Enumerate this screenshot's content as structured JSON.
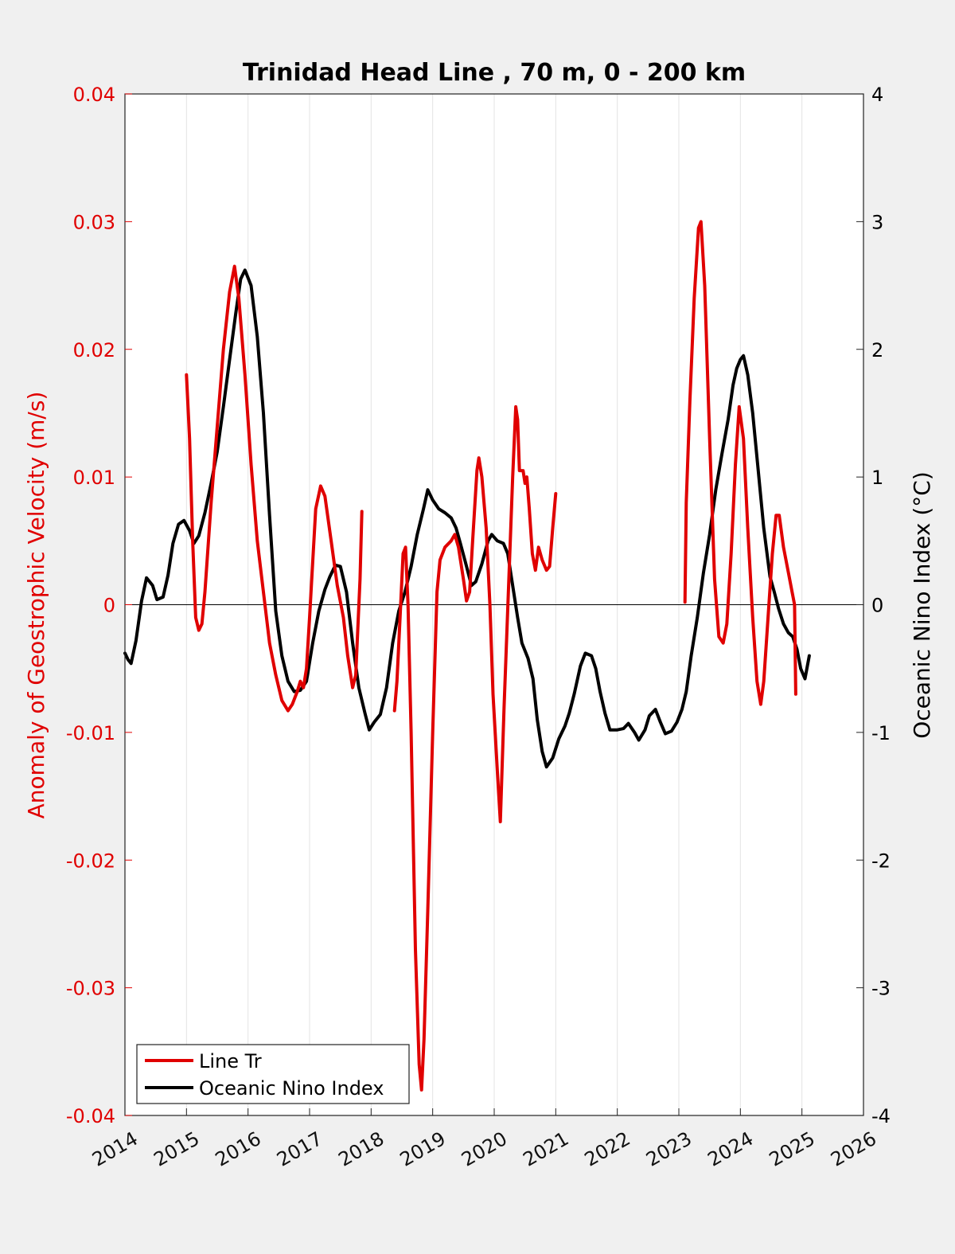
{
  "chart_data": {
    "type": "line",
    "title": "Trinidad Head Line , 70 m, 0 - 200 km",
    "xlabel": "",
    "ylabel_left": "Anomaly of Geostrophic Velocity (m/s)",
    "ylabel_right": "Oceanic Nino Index (°C)",
    "xlim": [
      2014,
      2026
    ],
    "ylim_left": [
      -0.04,
      0.04
    ],
    "ylim_right": [
      -4,
      4
    ],
    "x_ticks": [
      "2014",
      "2015",
      "2016",
      "2017",
      "2018",
      "2019",
      "2020",
      "2021",
      "2022",
      "2023",
      "2024",
      "2025",
      "2026"
    ],
    "y_ticks_left": [
      "-0.04",
      "-0.03",
      "-0.02",
      "-0.01",
      "0",
      "0.01",
      "0.02",
      "0.03",
      "0.04"
    ],
    "y_ticks_right": [
      "-4",
      "-3",
      "-2",
      "-1",
      "0",
      "1",
      "2",
      "3",
      "4"
    ],
    "grid": "vertical",
    "legend_position": "bottom-left",
    "colors": {
      "left_axis": "#e00000",
      "line_tr": "#e00000",
      "oni": "#000000",
      "background": "#f0f0f0",
      "plot_bg": "#ffffff"
    },
    "series": [
      {
        "name": "Line Tr",
        "axis": "left",
        "color": "#e00000",
        "segments": [
          [
            [
              2015.0,
              0.018
            ],
            [
              2015.05,
              0.013
            ],
            [
              2015.1,
              0.005
            ],
            [
              2015.15,
              -0.001
            ],
            [
              2015.2,
              -0.002
            ],
            [
              2015.25,
              -0.0015
            ],
            [
              2015.3,
              0.001
            ],
            [
              2015.4,
              0.008
            ],
            [
              2015.5,
              0.014
            ],
            [
              2015.6,
              0.02
            ],
            [
              2015.7,
              0.0245
            ],
            [
              2015.78,
              0.0265
            ],
            [
              2015.85,
              0.024
            ],
            [
              2015.95,
              0.018
            ],
            [
              2016.05,
              0.011
            ],
            [
              2016.15,
              0.005
            ],
            [
              2016.25,
              0.001
            ],
            [
              2016.35,
              -0.003
            ],
            [
              2016.45,
              -0.0055
            ],
            [
              2016.55,
              -0.0075
            ],
            [
              2016.65,
              -0.0083
            ],
            [
              2016.72,
              -0.0078
            ],
            [
              2016.8,
              -0.0068
            ],
            [
              2016.85,
              -0.006
            ],
            [
              2016.9,
              -0.0065
            ],
            [
              2016.95,
              -0.005
            ],
            [
              2017.0,
              -0.001
            ],
            [
              2017.1,
              0.0075
            ],
            [
              2017.18,
              0.0093
            ],
            [
              2017.25,
              0.0085
            ],
            [
              2017.35,
              0.005
            ],
            [
              2017.45,
              0.0015
            ],
            [
              2017.55,
              -0.001
            ],
            [
              2017.62,
              -0.004
            ],
            [
              2017.7,
              -0.0065
            ],
            [
              2017.75,
              -0.0055
            ],
            [
              2017.82,
              0.002
            ],
            [
              2017.85,
              0.0073
            ]
          ],
          [
            [
              2018.38,
              -0.0083
            ],
            [
              2018.42,
              -0.006
            ],
            [
              2018.47,
              -0.001
            ],
            [
              2018.52,
              0.004
            ],
            [
              2018.56,
              0.0045
            ],
            [
              2018.6,
              0.0
            ],
            [
              2018.65,
              -0.01
            ],
            [
              2018.72,
              -0.027
            ],
            [
              2018.78,
              -0.036
            ],
            [
              2018.82,
              -0.038
            ],
            [
              2018.86,
              -0.034
            ],
            [
              2018.92,
              -0.024
            ],
            [
              2019.0,
              -0.01
            ],
            [
              2019.07,
              0.001
            ],
            [
              2019.12,
              0.0035
            ],
            [
              2019.2,
              0.0045
            ],
            [
              2019.3,
              0.005
            ],
            [
              2019.36,
              0.0055
            ],
            [
              2019.42,
              0.0045
            ],
            [
              2019.5,
              0.002
            ],
            [
              2019.55,
              0.0003
            ],
            [
              2019.6,
              0.001
            ],
            [
              2019.65,
              0.005
            ],
            [
              2019.72,
              0.0105
            ],
            [
              2019.75,
              0.0115
            ],
            [
              2019.8,
              0.01
            ],
            [
              2019.87,
              0.006
            ],
            [
              2019.93,
              0.0
            ],
            [
              2019.98,
              -0.007
            ],
            [
              2020.05,
              -0.013
            ],
            [
              2020.1,
              -0.017
            ],
            [
              2020.16,
              -0.008
            ],
            [
              2020.23,
              0.001
            ],
            [
              2020.3,
              0.01
            ],
            [
              2020.35,
              0.0155
            ],
            [
              2020.38,
              0.0145
            ],
            [
              2020.41,
              0.0105
            ],
            [
              2020.44,
              0.0105
            ],
            [
              2020.47,
              0.0105
            ],
            [
              2020.5,
              0.0095
            ],
            [
              2020.53,
              0.01
            ],
            [
              2020.57,
              0.0075
            ],
            [
              2020.62,
              0.004
            ],
            [
              2020.67,
              0.0027
            ],
            [
              2020.72,
              0.0045
            ],
            [
              2020.78,
              0.0035
            ],
            [
              2020.85,
              0.0027
            ],
            [
              2020.9,
              0.003
            ],
            [
              2020.95,
              0.006
            ],
            [
              2021.0,
              0.0087
            ]
          ],
          [
            [
              2023.1,
              0.0002
            ],
            [
              2023.12,
              0.008
            ],
            [
              2023.18,
              0.016
            ],
            [
              2023.25,
              0.024
            ],
            [
              2023.32,
              0.0295
            ],
            [
              2023.36,
              0.03
            ],
            [
              2023.42,
              0.025
            ],
            [
              2023.5,
              0.013
            ],
            [
              2023.58,
              0.002
            ],
            [
              2023.65,
              -0.0025
            ],
            [
              2023.72,
              -0.003
            ],
            [
              2023.78,
              -0.0015
            ],
            [
              2023.85,
              0.004
            ],
            [
              2023.92,
              0.011
            ],
            [
              2023.98,
              0.0155
            ],
            [
              2024.05,
              0.013
            ],
            [
              2024.12,
              0.006
            ],
            [
              2024.2,
              -0.001
            ],
            [
              2024.27,
              -0.006
            ],
            [
              2024.33,
              -0.0078
            ],
            [
              2024.38,
              -0.006
            ],
            [
              2024.45,
              -0.001
            ],
            [
              2024.52,
              0.004
            ],
            [
              2024.58,
              0.007
            ],
            [
              2024.63,
              0.007
            ],
            [
              2024.7,
              0.0045
            ],
            [
              2024.78,
              0.0025
            ],
            [
              2024.84,
              0.001
            ],
            [
              2024.88,
              0.0
            ],
            [
              2024.9,
              -0.007
            ]
          ]
        ]
      },
      {
        "name": "Oceanic Nino Index",
        "axis": "right",
        "color": "#000000",
        "segments": [
          [
            [
              2014.0,
              -0.38
            ],
            [
              2014.05,
              -0.43
            ],
            [
              2014.1,
              -0.46
            ],
            [
              2014.18,
              -0.28
            ],
            [
              2014.27,
              0.03
            ],
            [
              2014.35,
              0.21
            ],
            [
              2014.45,
              0.15
            ],
            [
              2014.52,
              0.04
            ],
            [
              2014.62,
              0.06
            ],
            [
              2014.7,
              0.23
            ],
            [
              2014.78,
              0.48
            ],
            [
              2014.87,
              0.63
            ],
            [
              2014.96,
              0.66
            ],
            [
              2015.05,
              0.58
            ],
            [
              2015.12,
              0.48
            ],
            [
              2015.2,
              0.54
            ],
            [
              2015.3,
              0.72
            ],
            [
              2015.4,
              0.95
            ],
            [
              2015.5,
              1.2
            ],
            [
              2015.6,
              1.55
            ],
            [
              2015.7,
              1.92
            ],
            [
              2015.8,
              2.28
            ],
            [
              2015.88,
              2.55
            ],
            [
              2015.95,
              2.62
            ],
            [
              2016.05,
              2.5
            ],
            [
              2016.15,
              2.1
            ],
            [
              2016.25,
              1.5
            ],
            [
              2016.35,
              0.7
            ],
            [
              2016.45,
              -0.05
            ],
            [
              2016.55,
              -0.4
            ],
            [
              2016.65,
              -0.6
            ],
            [
              2016.75,
              -0.68
            ],
            [
              2016.85,
              -0.67
            ],
            [
              2016.95,
              -0.6
            ],
            [
              2017.05,
              -0.3
            ],
            [
              2017.15,
              -0.05
            ],
            [
              2017.25,
              0.12
            ],
            [
              2017.33,
              0.22
            ],
            [
              2017.42,
              0.31
            ],
            [
              2017.5,
              0.3
            ],
            [
              2017.6,
              0.1
            ],
            [
              2017.7,
              -0.3
            ],
            [
              2017.8,
              -0.65
            ],
            [
              2017.9,
              -0.85
            ],
            [
              2017.97,
              -0.98
            ],
            [
              2018.05,
              -0.92
            ],
            [
              2018.15,
              -0.86
            ],
            [
              2018.25,
              -0.65
            ],
            [
              2018.35,
              -0.3
            ],
            [
              2018.45,
              -0.05
            ],
            [
              2018.55,
              0.1
            ],
            [
              2018.65,
              0.3
            ],
            [
              2018.75,
              0.55
            ],
            [
              2018.85,
              0.75
            ],
            [
              2018.92,
              0.9
            ],
            [
              2019.0,
              0.82
            ],
            [
              2019.1,
              0.75
            ],
            [
              2019.2,
              0.72
            ],
            [
              2019.3,
              0.68
            ],
            [
              2019.38,
              0.6
            ],
            [
              2019.45,
              0.48
            ],
            [
              2019.55,
              0.3
            ],
            [
              2019.63,
              0.15
            ],
            [
              2019.7,
              0.18
            ],
            [
              2019.8,
              0.32
            ],
            [
              2019.9,
              0.5
            ],
            [
              2019.96,
              0.55
            ],
            [
              2020.05,
              0.5
            ],
            [
              2020.15,
              0.48
            ],
            [
              2020.22,
              0.4
            ],
            [
              2020.3,
              0.15
            ],
            [
              2020.38,
              -0.1
            ],
            [
              2020.45,
              -0.3
            ],
            [
              2020.55,
              -0.42
            ],
            [
              2020.63,
              -0.58
            ],
            [
              2020.7,
              -0.9
            ],
            [
              2020.78,
              -1.15
            ],
            [
              2020.85,
              -1.27
            ],
            [
              2020.95,
              -1.2
            ],
            [
              2021.05,
              -1.05
            ],
            [
              2021.15,
              -0.95
            ],
            [
              2021.22,
              -0.85
            ],
            [
              2021.3,
              -0.7
            ],
            [
              2021.4,
              -0.48
            ],
            [
              2021.48,
              -0.38
            ],
            [
              2021.58,
              -0.4
            ],
            [
              2021.65,
              -0.5
            ],
            [
              2021.72,
              -0.68
            ],
            [
              2021.8,
              -0.85
            ],
            [
              2021.88,
              -0.98
            ],
            [
              2022.0,
              -0.98
            ],
            [
              2022.1,
              -0.97
            ],
            [
              2022.18,
              -0.93
            ],
            [
              2022.28,
              -1.0
            ],
            [
              2022.35,
              -1.06
            ],
            [
              2022.45,
              -0.98
            ],
            [
              2022.52,
              -0.87
            ],
            [
              2022.62,
              -0.82
            ],
            [
              2022.7,
              -0.92
            ],
            [
              2022.78,
              -1.01
            ],
            [
              2022.88,
              -0.99
            ],
            [
              2022.97,
              -0.92
            ],
            [
              2023.05,
              -0.82
            ],
            [
              2023.12,
              -0.68
            ],
            [
              2023.2,
              -0.4
            ],
            [
              2023.3,
              -0.1
            ],
            [
              2023.4,
              0.25
            ],
            [
              2023.5,
              0.55
            ],
            [
              2023.6,
              0.9
            ],
            [
              2023.7,
              1.18
            ],
            [
              2023.8,
              1.45
            ],
            [
              2023.88,
              1.72
            ],
            [
              2023.94,
              1.85
            ],
            [
              2024.0,
              1.92
            ],
            [
              2024.05,
              1.95
            ],
            [
              2024.12,
              1.8
            ],
            [
              2024.2,
              1.5
            ],
            [
              2024.28,
              1.1
            ],
            [
              2024.38,
              0.6
            ],
            [
              2024.48,
              0.22
            ],
            [
              2024.55,
              0.1
            ],
            [
              2024.62,
              -0.03
            ],
            [
              2024.7,
              -0.15
            ],
            [
              2024.78,
              -0.22
            ],
            [
              2024.85,
              -0.25
            ],
            [
              2024.92,
              -0.35
            ],
            [
              2024.98,
              -0.5
            ],
            [
              2025.05,
              -0.58
            ],
            [
              2025.12,
              -0.4
            ]
          ]
        ]
      }
    ]
  }
}
